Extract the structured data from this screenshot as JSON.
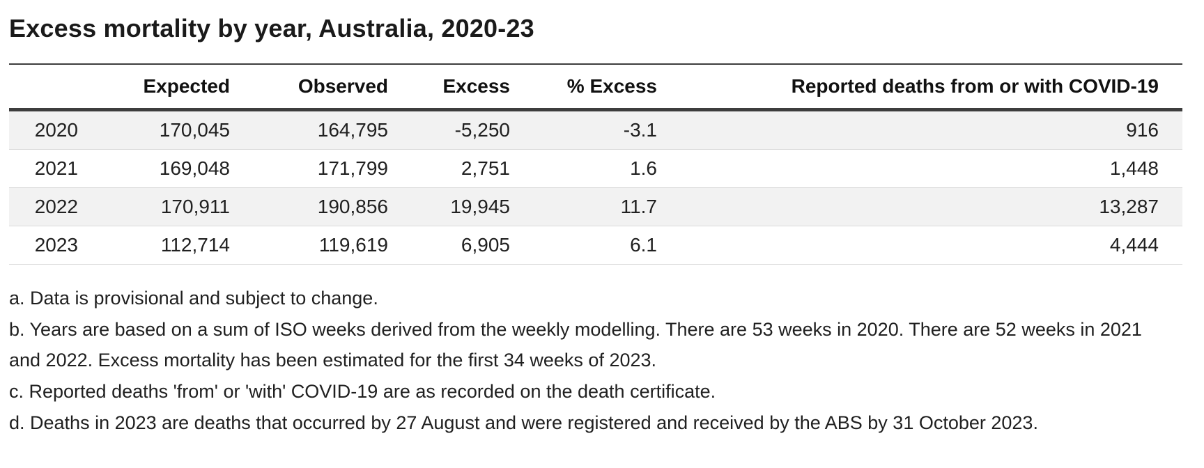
{
  "title": "Excess mortality by year, Australia, 2020-23",
  "chart_data": {
    "type": "table",
    "title": "Excess mortality by year, Australia, 2020-23",
    "columns": [
      "",
      "Expected",
      "Observed",
      "Excess",
      "% Excess",
      "Reported deaths from or with COVID-19"
    ],
    "rows": [
      [
        "2020",
        "170,045",
        "164,795",
        "-5,250",
        "-3.1",
        "916"
      ],
      [
        "2021",
        "169,048",
        "171,799",
        "2,751",
        "1.6",
        "1,448"
      ],
      [
        "2022",
        "170,911",
        "190,856",
        "19,945",
        "11.7",
        "13,287"
      ],
      [
        "2023",
        "112,714",
        "119,619",
        "6,905",
        "6.1",
        "4,444"
      ]
    ],
    "striped_row_indices": [
      0,
      2
    ],
    "layout": {
      "grid": "horizontal-rules-only",
      "numeric_alignment": "right"
    }
  },
  "footnotes": [
    "a. Data is provisional and subject to change.",
    "b. Years are based on a sum of ISO weeks derived from the weekly modelling. There are 53 weeks in 2020. There are 52 weeks in 2021 and 2022. Excess mortality has been estimated for the first 34 weeks of 2023.",
    "c. Reported deaths 'from' or 'with' COVID-19 are as recorded on the death certificate.",
    "d. Deaths in 2023 are deaths that occurred by 27 August and were registered and received by the ABS by 31 October 2023."
  ],
  "colors": {
    "text": "#202020",
    "title_text": "#1a1a1a",
    "rule_dark": "#3d3d3d",
    "rule_light": "#d9d9d9",
    "row_stripe": "#f2f2f2",
    "background": "#ffffff"
  }
}
